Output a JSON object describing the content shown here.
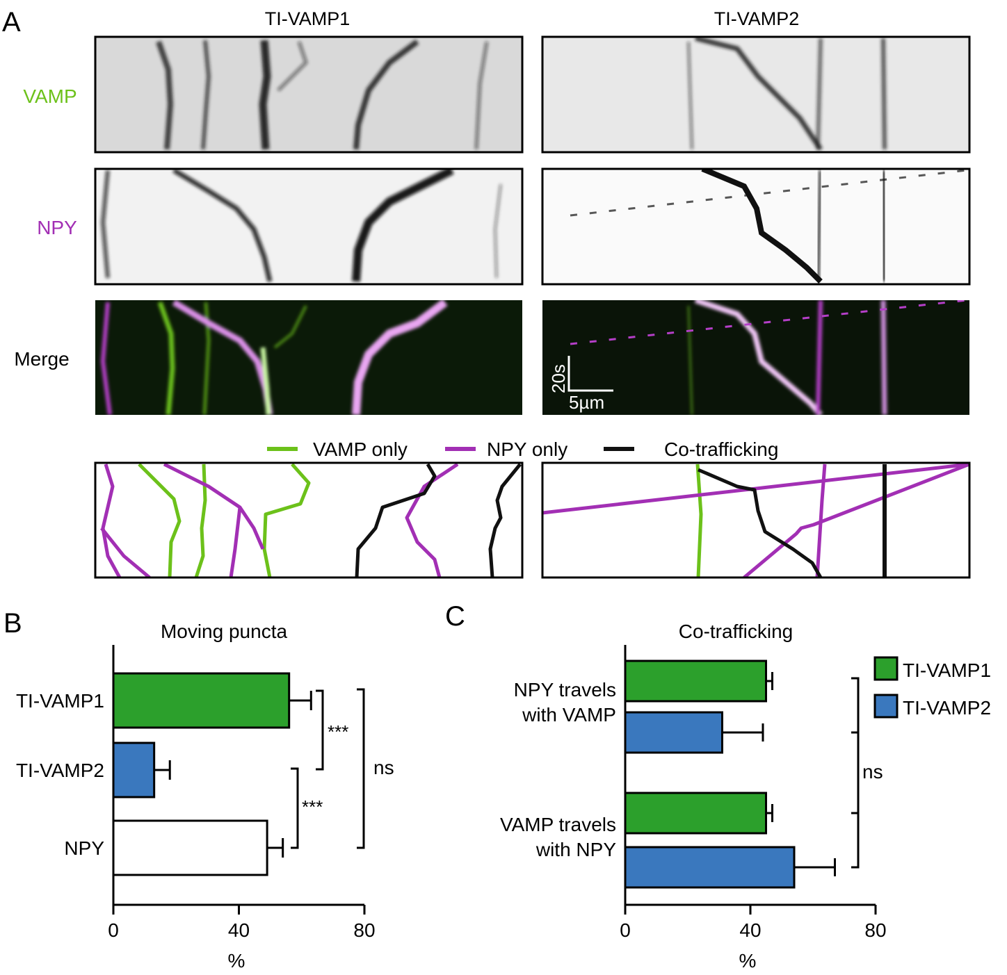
{
  "panelA": {
    "letter": "A",
    "col_titles": [
      "TI-VAMP1",
      "TI-VAMP2"
    ],
    "row_labels": {
      "vamp": "VAMP",
      "npy": "NPY",
      "merge": "Merge"
    },
    "scale_time": "20s",
    "scale_length": "5µm",
    "legend": [
      "VAMP only",
      "NPY only",
      "Co-trafficking"
    ],
    "colors": {
      "vamp": "#6cc11a",
      "npy": "#a22fb4",
      "co": "#111111"
    }
  },
  "chart_data": [
    {
      "type": "bar",
      "orientation": "horizontal",
      "panel": "B",
      "title": "Moving puncta",
      "xlabel": "%",
      "ylabel": "",
      "xlim": [
        0,
        80
      ],
      "xticks": [
        0,
        40,
        80
      ],
      "categories": [
        "TI-VAMP1",
        "TI-VAMP2",
        "NPY"
      ],
      "values": [
        56,
        13,
        49
      ],
      "errors": [
        7,
        5,
        5
      ],
      "colors": [
        "#2ca02c",
        "#3a78be",
        "#ffffff"
      ],
      "annotations": [
        {
          "between": [
            "TI-VAMP1",
            "TI-VAMP2"
          ],
          "text": "***"
        },
        {
          "between": [
            "TI-VAMP2",
            "NPY"
          ],
          "text": "***"
        },
        {
          "between": [
            "TI-VAMP1",
            "NPY"
          ],
          "text": "ns"
        }
      ]
    },
    {
      "type": "bar",
      "orientation": "horizontal",
      "panel": "C",
      "title": "Co-trafficking",
      "xlabel": "%",
      "ylabel": "",
      "xlim": [
        0,
        80
      ],
      "xticks": [
        0,
        40,
        80
      ],
      "categories": [
        "NPY travels\nwith VAMP",
        "VAMP travels\nwith NPY"
      ],
      "series": [
        {
          "name": "TI-VAMP1",
          "values": [
            45,
            45
          ],
          "errors": [
            2,
            2
          ],
          "color": "#2ca02c"
        },
        {
          "name": "TI-VAMP2",
          "values": [
            31,
            54
          ],
          "errors": [
            13,
            13
          ],
          "color": "#3a78be"
        }
      ],
      "annotations": [
        {
          "text": "ns"
        }
      ],
      "legend": "top-right"
    }
  ]
}
